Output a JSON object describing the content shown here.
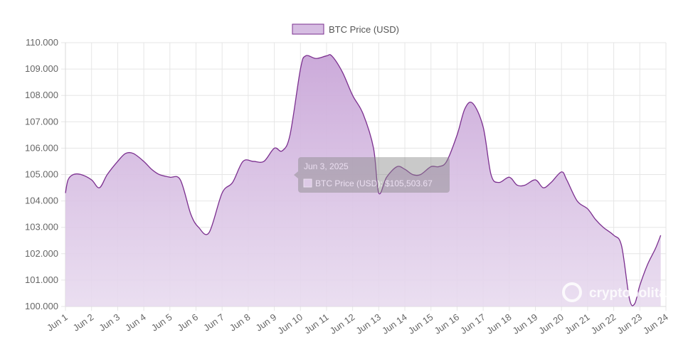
{
  "chart_data": {
    "type": "area",
    "legend": {
      "label": "BTC Price (USD)",
      "placement": "top-center"
    },
    "colors": {
      "line": "#7b2f8f",
      "fill": "#c9a6d8",
      "grid": "#e6e6e6",
      "axis_text": "#666666"
    },
    "ylim": [
      100000,
      110000
    ],
    "y_ticks": [
      "100.000",
      "101.000",
      "102.000",
      "103.000",
      "104.000",
      "105.000",
      "106.000",
      "107.000",
      "108.000",
      "109.000",
      "110.000"
    ],
    "x_range_days": [
      1,
      24
    ],
    "x_ticks": [
      "Jun 1",
      "Jun 2",
      "Jun 3",
      "Jun 4",
      "Jun 5",
      "Jun 6",
      "Jun 7",
      "Jun 8",
      "Jun 9",
      "Jun 10",
      "Jun 11",
      "Jun 12",
      "Jun 13",
      "Jun 14",
      "Jun 15",
      "Jun 16",
      "Jun 17",
      "Jun 18",
      "Jun 19",
      "Jun 20",
      "Jun 21",
      "Jun 22",
      "Jun 23",
      "Jun 24"
    ],
    "grid": true,
    "series": [
      {
        "name": "BTC Price (USD)",
        "x": [
          1.0,
          1.1,
          1.3,
          1.6,
          2.0,
          2.3,
          2.6,
          3.0,
          3.3,
          3.6,
          4.0,
          4.3,
          4.6,
          5.0,
          5.4,
          5.8,
          6.1,
          6.5,
          7.0,
          7.4,
          7.8,
          8.2,
          8.6,
          9.0,
          9.3,
          9.6,
          10.0,
          10.2,
          10.6,
          11.0,
          11.2,
          11.6,
          12.0,
          12.4,
          12.8,
          13.0,
          13.3,
          13.7,
          14.0,
          14.3,
          14.6,
          15.0,
          15.3,
          15.6,
          16.0,
          16.3,
          16.6,
          17.0,
          17.3,
          17.6,
          18.0,
          18.3,
          18.6,
          19.0,
          19.3,
          19.6,
          20.0,
          20.2,
          20.6,
          21.0,
          21.3,
          21.6,
          22.0,
          22.3,
          22.6,
          22.8,
          23.0,
          23.3,
          23.6,
          23.8
        ],
        "values": [
          104300,
          104800,
          105000,
          105000,
          104800,
          104500,
          105000,
          105500,
          105800,
          105800,
          105500,
          105200,
          105000,
          104900,
          104800,
          103500,
          103000,
          102800,
          104300,
          104700,
          105500,
          105500,
          105500,
          106000,
          105900,
          106500,
          109000,
          109500,
          109400,
          109500,
          109500,
          108900,
          108000,
          107300,
          106000,
          104300,
          104900,
          105300,
          105200,
          105000,
          105000,
          105300,
          105300,
          105500,
          106500,
          107500,
          107700,
          106800,
          105000,
          104700,
          104900,
          104600,
          104600,
          104800,
          104500,
          104700,
          105100,
          104800,
          104000,
          103700,
          103300,
          103000,
          102700,
          102300,
          100300,
          100100,
          100800,
          101600,
          102200,
          102700
        ]
      }
    ],
    "tooltip": {
      "title": "Jun 3, 2025",
      "body": "BTC Price (USD): $105,503.67"
    }
  },
  "watermark": {
    "text": "cryptopolitan"
  }
}
